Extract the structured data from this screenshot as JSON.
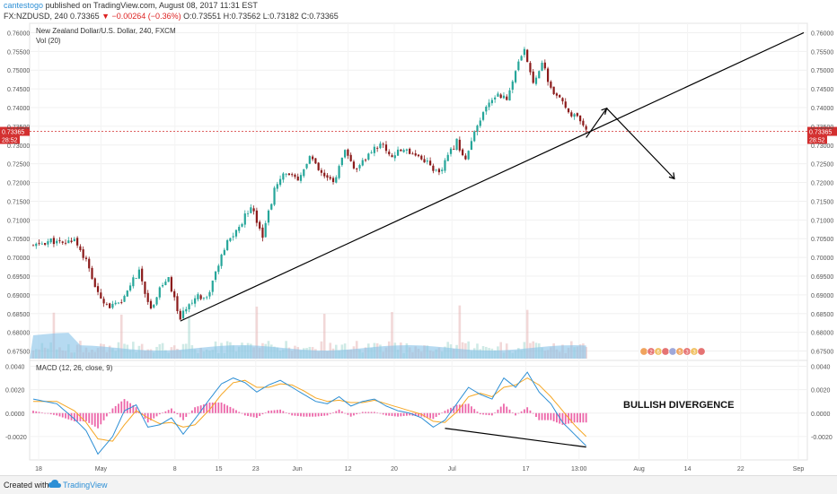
{
  "header": {
    "author": "cantestogo",
    "published": "published on TradingView.com, August 08, 2017 11:31 EST",
    "symbol": "FX:NZDUSD, 240",
    "last": "0.73365",
    "change": "▼ −0.00264 (−0.36%)",
    "open": "O:0.73551",
    "high": "H:0.73562",
    "low": "L:0.73182",
    "close": "C:0.73365"
  },
  "footer": {
    "created_with": "Created with",
    "brand": "TradingView"
  },
  "colors": {
    "up": "#26a69a",
    "down": "#8b1a1a",
    "macd": "#2d8fd5",
    "signal": "#f5a623",
    "hist": "#e94b9a",
    "volume": "#86c2e8",
    "alert": "#d32f2f"
  },
  "chart_data": [
    {
      "type": "candlestick",
      "title": "New Zealand Dollar/U.S. Dollar, 240, FXCM",
      "indicator_label": "Vol (20)",
      "y_ticks": [
        "0.76000",
        "0.75500",
        "0.75000",
        "0.74500",
        "0.74000",
        "0.73500",
        "0.73000",
        "0.72500",
        "0.72000",
        "0.71500",
        "0.71000",
        "0.70500",
        "0.70000",
        "0.69500",
        "0.69000",
        "0.68500",
        "0.68000",
        "0.67500"
      ],
      "ylim": [
        0.6725,
        0.7625
      ],
      "x_ticks": [
        "18",
        "May",
        "8",
        "15",
        "23",
        "Jun",
        "12",
        "20",
        "Jul",
        "17",
        "13:00",
        "Aug",
        "14",
        "22",
        "Sep"
      ],
      "price_label": "0.73365",
      "countdown_label": "28:52",
      "price_line": 0.73365,
      "waypoints": [
        {
          "t": 0,
          "v": 0.703
        },
        {
          "t": 6,
          "v": 0.7045
        },
        {
          "t": 10,
          "v": 0.7035
        },
        {
          "t": 14,
          "v": 0.705
        },
        {
          "t": 18,
          "v": 0.699
        },
        {
          "t": 22,
          "v": 0.69
        },
        {
          "t": 26,
          "v": 0.687
        },
        {
          "t": 30,
          "v": 0.6875
        },
        {
          "t": 33,
          "v": 0.693
        },
        {
          "t": 36,
          "v": 0.696
        },
        {
          "t": 40,
          "v": 0.686
        },
        {
          "t": 43,
          "v": 0.692
        },
        {
          "t": 46,
          "v": 0.694
        },
        {
          "t": 50,
          "v": 0.6835
        },
        {
          "t": 53,
          "v": 0.688
        },
        {
          "t": 56,
          "v": 0.69
        },
        {
          "t": 59,
          "v": 0.689
        },
        {
          "t": 62,
          "v": 0.696
        },
        {
          "t": 66,
          "v": 0.704
        },
        {
          "t": 70,
          "v": 0.708
        },
        {
          "t": 74,
          "v": 0.714
        },
        {
          "t": 78,
          "v": 0.706
        },
        {
          "t": 82,
          "v": 0.718
        },
        {
          "t": 86,
          "v": 0.723
        },
        {
          "t": 90,
          "v": 0.72
        },
        {
          "t": 94,
          "v": 0.727
        },
        {
          "t": 98,
          "v": 0.722
        },
        {
          "t": 102,
          "v": 0.72
        },
        {
          "t": 106,
          "v": 0.728
        },
        {
          "t": 110,
          "v": 0.723
        },
        {
          "t": 114,
          "v": 0.7275
        },
        {
          "t": 118,
          "v": 0.7305
        },
        {
          "t": 122,
          "v": 0.727
        },
        {
          "t": 126,
          "v": 0.729
        },
        {
          "t": 130,
          "v": 0.7275
        },
        {
          "t": 134,
          "v": 0.7255
        },
        {
          "t": 138,
          "v": 0.722
        },
        {
          "t": 141,
          "v": 0.727
        },
        {
          "t": 144,
          "v": 0.731
        },
        {
          "t": 147,
          "v": 0.726
        },
        {
          "t": 150,
          "v": 0.733
        },
        {
          "t": 154,
          "v": 0.74
        },
        {
          "t": 158,
          "v": 0.744
        },
        {
          "t": 161,
          "v": 0.742
        },
        {
          "t": 164,
          "v": 0.75
        },
        {
          "t": 167,
          "v": 0.755
        },
        {
          "t": 170,
          "v": 0.747
        },
        {
          "t": 173,
          "v": 0.752
        },
        {
          "t": 176,
          "v": 0.745
        },
        {
          "t": 179,
          "v": 0.742
        },
        {
          "t": 182,
          "v": 0.739
        },
        {
          "t": 185,
          "v": 0.737
        },
        {
          "t": 188,
          "v": 0.7335
        }
      ]
    },
    {
      "type": "line",
      "title": "MACD (12, 26, close, 9)",
      "y_ticks": [
        "0.0040",
        "0.0020",
        "0.0000",
        "-0.0020"
      ],
      "ylim": [
        -0.004,
        0.0045
      ],
      "series": [
        {
          "role": "macd",
          "points": [
            {
              "t": 0,
              "v": 0.0012
            },
            {
              "t": 8,
              "v": 0.0008
            },
            {
              "t": 14,
              "v": -0.0005
            },
            {
              "t": 18,
              "v": -0.0015
            },
            {
              "t": 22,
              "v": -0.0035
            },
            {
              "t": 27,
              "v": -0.002
            },
            {
              "t": 31,
              "v": 0.0002
            },
            {
              "t": 35,
              "v": 0.0007
            },
            {
              "t": 39,
              "v": -0.0012
            },
            {
              "t": 43,
              "v": -0.001
            },
            {
              "t": 47,
              "v": -0.0004
            },
            {
              "t": 51,
              "v": -0.0018
            },
            {
              "t": 55,
              "v": -0.0005
            },
            {
              "t": 60,
              "v": 0.0012
            },
            {
              "t": 64,
              "v": 0.0025
            },
            {
              "t": 68,
              "v": 0.003
            },
            {
              "t": 72,
              "v": 0.0026
            },
            {
              "t": 76,
              "v": 0.0018
            },
            {
              "t": 80,
              "v": 0.0024
            },
            {
              "t": 84,
              "v": 0.0028
            },
            {
              "t": 88,
              "v": 0.0022
            },
            {
              "t": 92,
              "v": 0.0016
            },
            {
              "t": 96,
              "v": 0.001
            },
            {
              "t": 100,
              "v": 0.0008
            },
            {
              "t": 104,
              "v": 0.0014
            },
            {
              "t": 108,
              "v": 0.0006
            },
            {
              "t": 112,
              "v": 0.001
            },
            {
              "t": 116,
              "v": 0.0012
            },
            {
              "t": 120,
              "v": 0.0006
            },
            {
              "t": 124,
              "v": 0.0002
            },
            {
              "t": 128,
              "v": 0.0
            },
            {
              "t": 132,
              "v": -0.0004
            },
            {
              "t": 136,
              "v": -0.0012
            },
            {
              "t": 140,
              "v": -0.0006
            },
            {
              "t": 144,
              "v": 0.0008
            },
            {
              "t": 148,
              "v": 0.0022
            },
            {
              "t": 152,
              "v": 0.0016
            },
            {
              "t": 156,
              "v": 0.0012
            },
            {
              "t": 160,
              "v": 0.003
            },
            {
              "t": 164,
              "v": 0.0022
            },
            {
              "t": 168,
              "v": 0.0035
            },
            {
              "t": 172,
              "v": 0.0018
            },
            {
              "t": 176,
              "v": 0.0008
            },
            {
              "t": 180,
              "v": -0.0008
            },
            {
              "t": 184,
              "v": -0.0018
            },
            {
              "t": 188,
              "v": -0.0028
            }
          ]
        },
        {
          "role": "signal",
          "points": [
            {
              "t": 0,
              "v": 0.001
            },
            {
              "t": 8,
              "v": 0.001
            },
            {
              "t": 14,
              "v": 0.0002
            },
            {
              "t": 18,
              "v": -0.0008
            },
            {
              "t": 22,
              "v": -0.0022
            },
            {
              "t": 27,
              "v": -0.0024
            },
            {
              "t": 31,
              "v": -0.001
            },
            {
              "t": 35,
              "v": 0.0002
            },
            {
              "t": 39,
              "v": -0.0004
            },
            {
              "t": 43,
              "v": -0.0009
            },
            {
              "t": 47,
              "v": -0.0008
            },
            {
              "t": 51,
              "v": -0.0012
            },
            {
              "t": 55,
              "v": -0.001
            },
            {
              "t": 60,
              "v": 0.0003
            },
            {
              "t": 64,
              "v": 0.0016
            },
            {
              "t": 68,
              "v": 0.0026
            },
            {
              "t": 72,
              "v": 0.0028
            },
            {
              "t": 76,
              "v": 0.0022
            },
            {
              "t": 80,
              "v": 0.0022
            },
            {
              "t": 84,
              "v": 0.0025
            },
            {
              "t": 88,
              "v": 0.0024
            },
            {
              "t": 92,
              "v": 0.0019
            },
            {
              "t": 96,
              "v": 0.0013
            },
            {
              "t": 100,
              "v": 0.001
            },
            {
              "t": 104,
              "v": 0.0011
            },
            {
              "t": 108,
              "v": 0.0009
            },
            {
              "t": 112,
              "v": 0.0009
            },
            {
              "t": 116,
              "v": 0.0011
            },
            {
              "t": 120,
              "v": 0.0008
            },
            {
              "t": 124,
              "v": 0.0005
            },
            {
              "t": 128,
              "v": 0.0002
            },
            {
              "t": 132,
              "v": -0.0001
            },
            {
              "t": 136,
              "v": -0.0007
            },
            {
              "t": 140,
              "v": -0.0008
            },
            {
              "t": 144,
              "v": 0.0001
            },
            {
              "t": 148,
              "v": 0.0014
            },
            {
              "t": 152,
              "v": 0.0017
            },
            {
              "t": 156,
              "v": 0.0014
            },
            {
              "t": 160,
              "v": 0.0022
            },
            {
              "t": 164,
              "v": 0.0024
            },
            {
              "t": 168,
              "v": 0.003
            },
            {
              "t": 172,
              "v": 0.0024
            },
            {
              "t": 176,
              "v": 0.0014
            },
            {
              "t": 180,
              "v": 0.0002
            },
            {
              "t": 184,
              "v": -0.001
            },
            {
              "t": 188,
              "v": -0.002
            }
          ]
        }
      ]
    }
  ],
  "annotations": {
    "divergence": "BULLISH DIVERGENCE"
  },
  "volume_badges": [
    {
      "kind": "flag"
    },
    {
      "kind": "text",
      "label": "2"
    },
    {
      "kind": "text",
      "label": "6"
    },
    {
      "kind": "flag"
    },
    {
      "kind": "flag"
    },
    {
      "kind": "text",
      "label": "5"
    },
    {
      "kind": "text",
      "label": "3"
    },
    {
      "kind": "text",
      "label": "3"
    },
    {
      "kind": "flag"
    }
  ]
}
